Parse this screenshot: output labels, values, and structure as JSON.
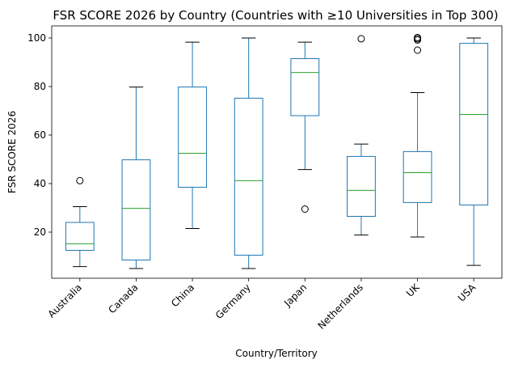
{
  "chart_data": {
    "type": "box",
    "title": "FSR SCORE 2026 by Country (Countries with ≥10 Universities in Top 300)",
    "xlabel": "Country/Territory",
    "ylabel": "FSR SCORE 2026",
    "ylim": [
      1,
      105
    ],
    "yticks": [
      20,
      40,
      60,
      80,
      100
    ],
    "grid": false,
    "legend": "none",
    "colors": {
      "box": "#1f77b4",
      "median": "#2ca02c",
      "whisker": "#1f77b4",
      "cap": "#000000",
      "flier": "#000000"
    },
    "categories": [
      "Australia",
      "Canada",
      "China",
      "Germany",
      "Japan",
      "Netherlands",
      "UK",
      "USA"
    ],
    "boxes": [
      {
        "category": "Australia",
        "whislo": 5.8,
        "q1": 12.5,
        "med": 15.2,
        "q3": 24.0,
        "whishi": 30.5,
        "fliers": [
          41.2
        ]
      },
      {
        "category": "Canada",
        "whislo": 5.0,
        "q1": 8.5,
        "med": 29.8,
        "q3": 49.8,
        "whishi": 79.8,
        "fliers": []
      },
      {
        "category": "China",
        "whislo": 21.5,
        "q1": 38.5,
        "med": 52.5,
        "q3": 79.8,
        "whishi": 98.3,
        "fliers": []
      },
      {
        "category": "Germany",
        "whislo": 5.0,
        "q1": 10.5,
        "med": 41.2,
        "q3": 75.2,
        "whishi": 100.0,
        "fliers": []
      },
      {
        "category": "Japan",
        "whislo": 45.8,
        "q1": 68.0,
        "med": 85.8,
        "q3": 91.5,
        "whishi": 98.3,
        "fliers": [
          29.5
        ]
      },
      {
        "category": "Netherlands",
        "whislo": 18.8,
        "q1": 26.5,
        "med": 37.2,
        "q3": 51.2,
        "whishi": 56.3,
        "fliers": [
          99.7
        ]
      },
      {
        "category": "UK",
        "whislo": 18.0,
        "q1": 32.2,
        "med": 44.5,
        "q3": 53.2,
        "whishi": 77.5,
        "fliers": [
          95.0,
          99.2,
          99.7,
          100.2
        ]
      },
      {
        "category": "USA",
        "whislo": 6.3,
        "q1": 31.2,
        "med": 68.5,
        "q3": 97.8,
        "whishi": 100.0,
        "fliers": []
      }
    ]
  }
}
